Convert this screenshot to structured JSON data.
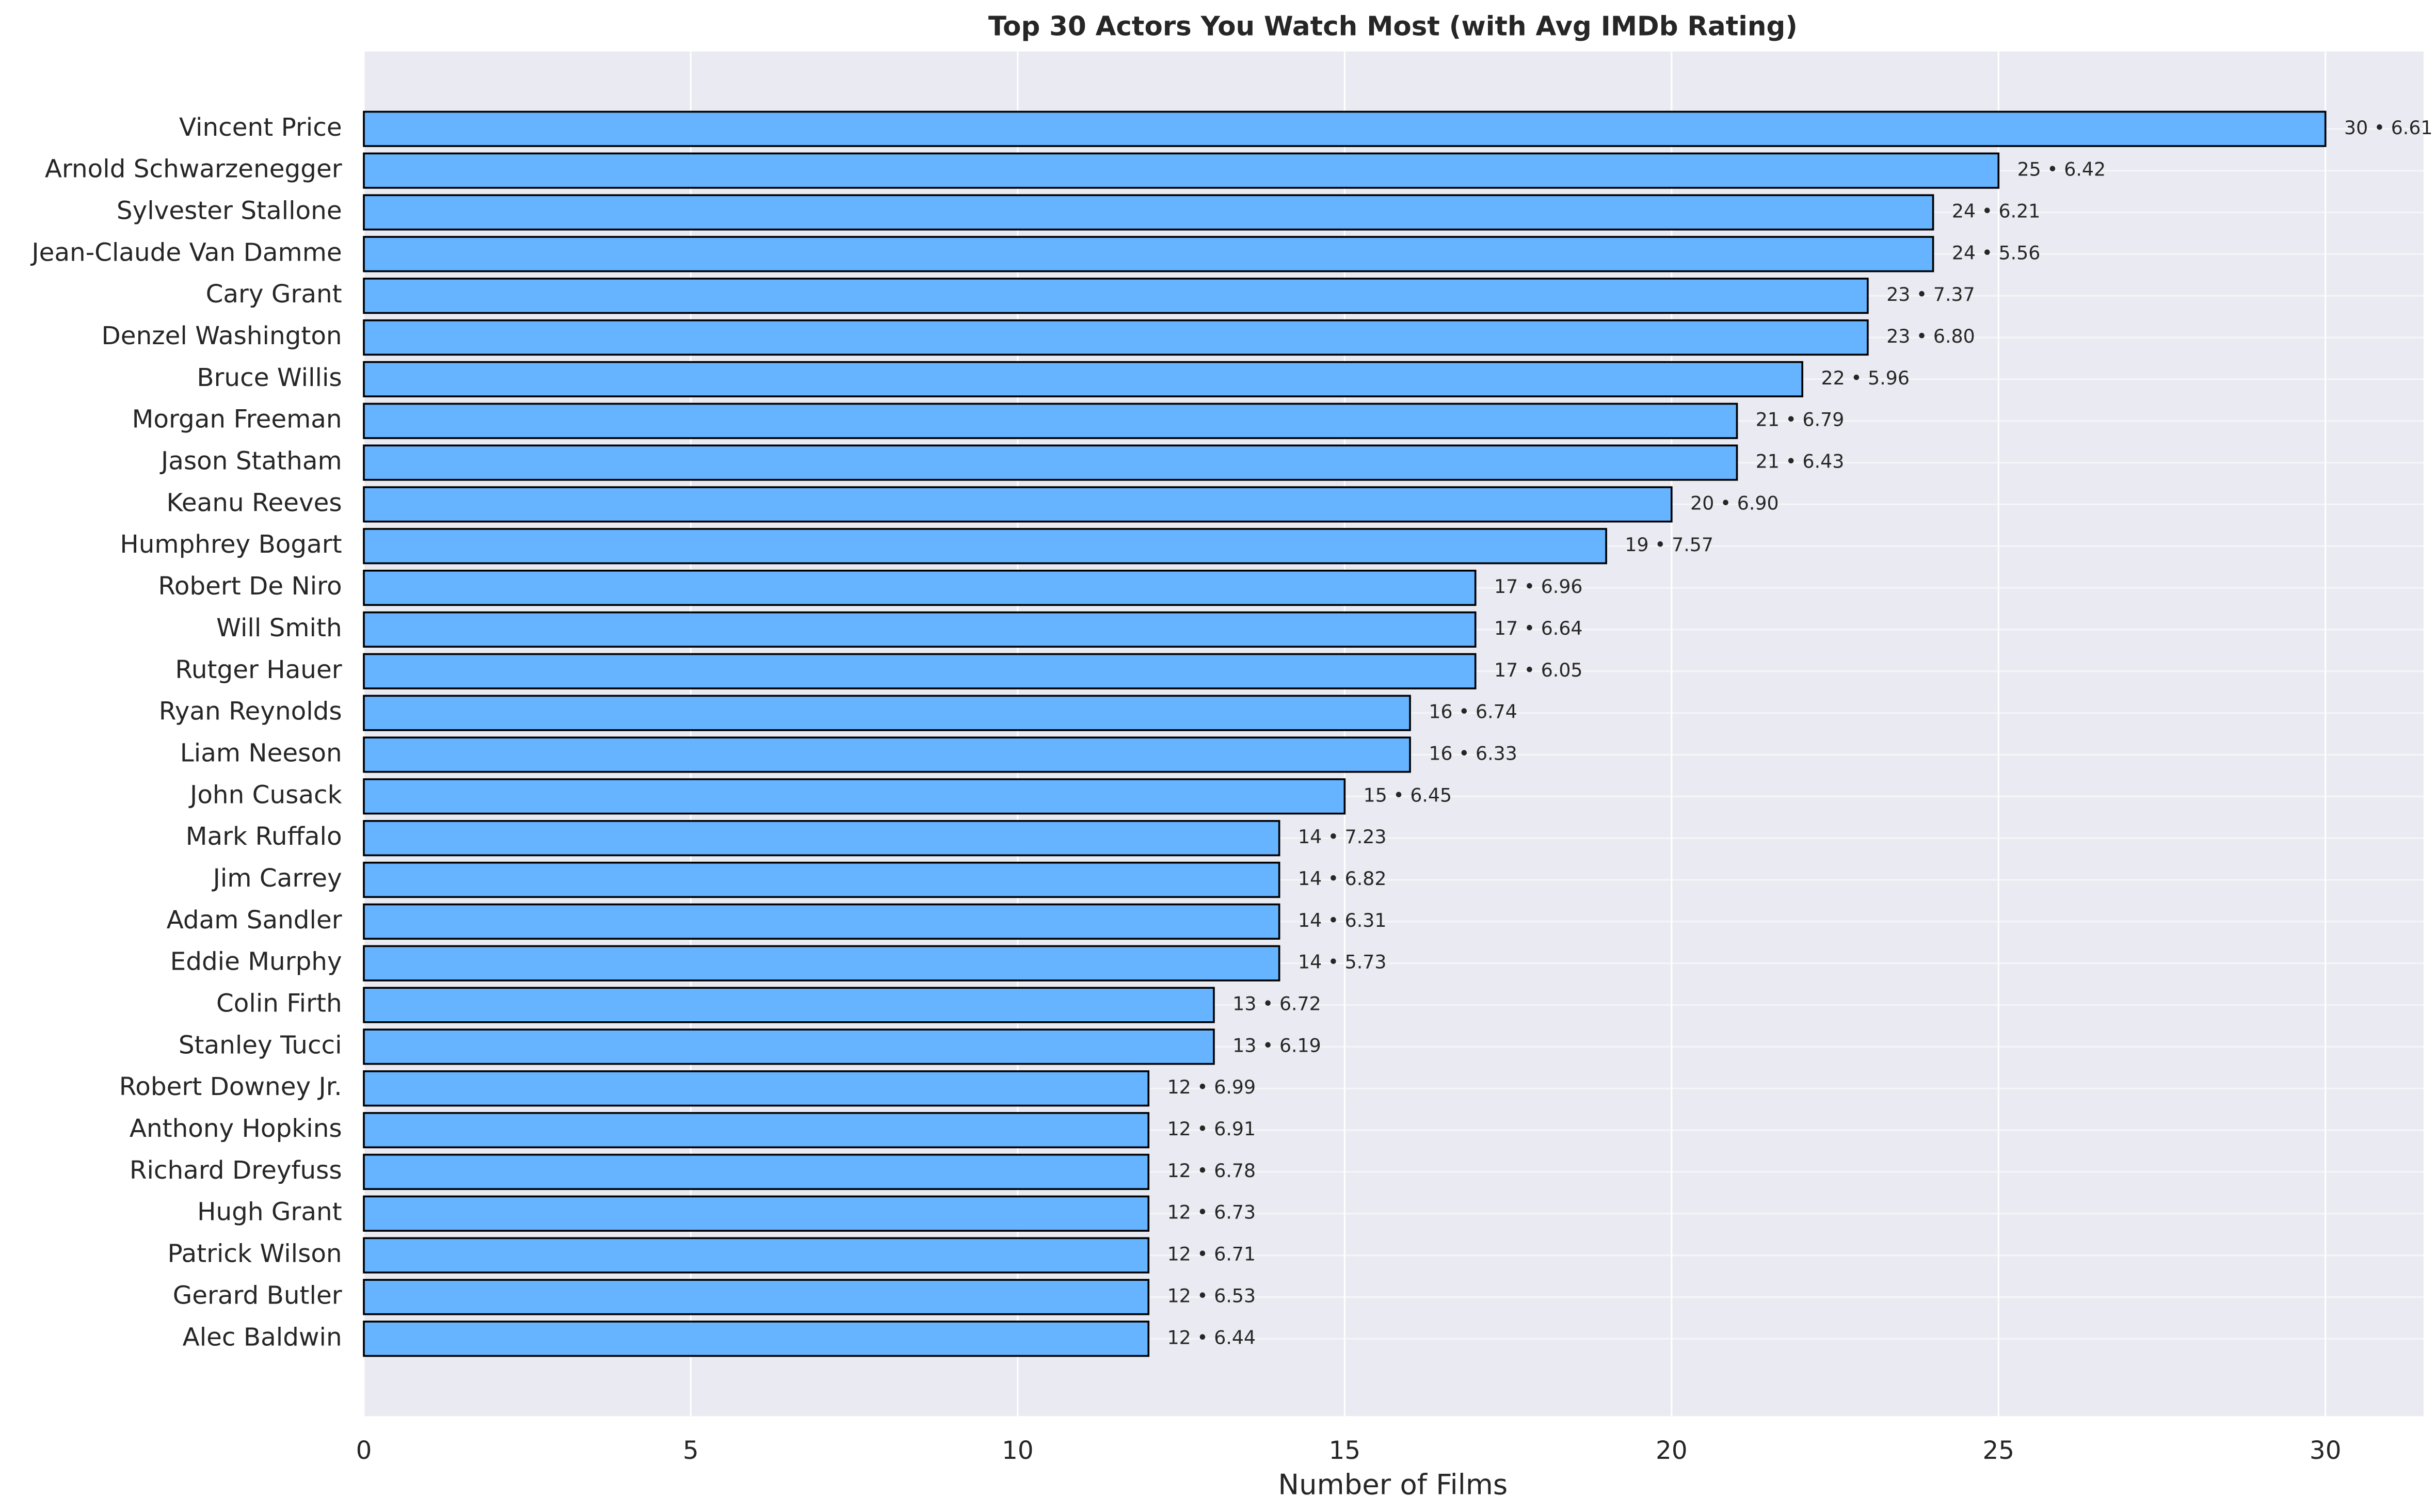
{
  "chart_data": {
    "type": "barh",
    "title": "Top 30 Actors You Watch Most (with Avg IMDb Rating)",
    "x_label": "Number of Films",
    "categories": [
      "Vincent Price",
      "Arnold Schwarzenegger",
      "Sylvester Stallone",
      "Jean-Claude Van Damme",
      "Cary Grant",
      "Denzel Washington",
      "Bruce Willis",
      "Morgan Freeman",
      "Jason Statham",
      "Keanu Reeves",
      "Humphrey Bogart",
      "Robert De Niro",
      "Will Smith",
      "Rutger Hauer",
      "Ryan Reynolds",
      "Liam Neeson",
      "John Cusack",
      "Mark Ruffalo",
      "Jim Carrey",
      "Adam Sandler",
      "Eddie Murphy",
      "Colin Firth",
      "Stanley Tucci",
      "Robert Downey Jr.",
      "Anthony Hopkins",
      "Richard Dreyfuss",
      "Hugh Grant",
      "Patrick Wilson",
      "Gerard Butler",
      "Alec Baldwin"
    ],
    "values": [
      30,
      25,
      24,
      24,
      23,
      23,
      22,
      21,
      21,
      20,
      19,
      17,
      17,
      17,
      16,
      16,
      15,
      14,
      14,
      14,
      14,
      13,
      13,
      12,
      12,
      12,
      12,
      12,
      12,
      12
    ],
    "value_labels": [
      "30 • 6.61",
      "25 • 6.42",
      "24 • 6.21",
      "24 • 5.56",
      "23 • 7.37",
      "23 • 6.80",
      "22 • 5.96",
      "21 • 6.79",
      "21 • 6.43",
      "20 • 6.90",
      "19 • 7.57",
      "17 • 6.96",
      "17 • 6.64",
      "17 • 6.05",
      "16 • 6.74",
      "16 • 6.33",
      "15 • 6.45",
      "14 • 7.23",
      "14 • 6.82",
      "14 • 6.31",
      "14 • 5.73",
      "13 • 6.72",
      "13 • 6.19",
      "12 • 6.99",
      "12 • 6.91",
      "12 • 6.78",
      "12 • 6.73",
      "12 • 6.71",
      "12 • 6.53",
      "12 • 6.44"
    ],
    "color": "#66b3ff",
    "edge_color": "#000000",
    "xlim": [
      0,
      31.5
    ],
    "xticks": [
      0,
      5,
      10,
      15,
      20,
      25,
      30
    ],
    "grid": true
  }
}
